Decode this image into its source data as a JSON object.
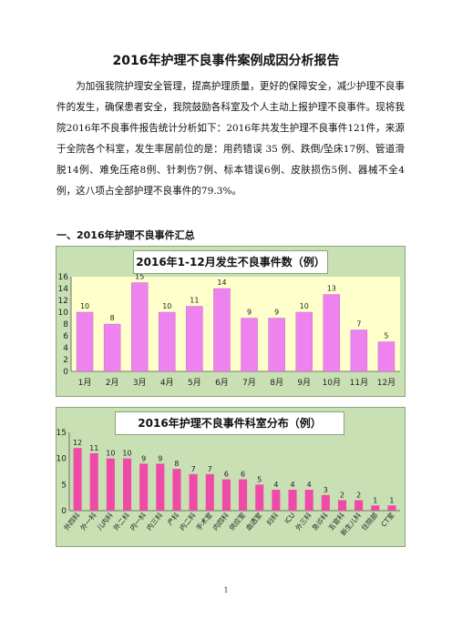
{
  "document": {
    "title": "2016年护理不良事件案例成因分析报告",
    "paragraph": "为加强我院护理安全管理，提高护理质量，更好的保障安全，减少护理不良事件的发生，确保患者安全，我院鼓励各科室及个人主动上报护理不良事件。现将我院2016年不良事件报告统计分析如下：2016年共发生护理不良事件121件，来源于全院各个科室，发生率居前位的是：用药错误 35 例、跌倒/坠床17例、管道滑脱14例、难免压疮8例、针刺伤7例、标本错误6例、皮肤损伤5例、器械不全4例，这八项占全部护理不良事件的79.3%。",
    "section_heading": "一、2016年护理不良事件汇总",
    "page_number": "1"
  },
  "colors": {
    "bar": "#ee82ee",
    "bar_stroke": "#c060c0",
    "plot_bg": "#ffffcc",
    "frame_bg": "#c8e0b4",
    "pink_bar": "#f04aa8"
  },
  "chart_data": [
    {
      "type": "bar",
      "title": "2016年1-12月发生不良事件数（例）",
      "categories": [
        "1月",
        "2月",
        "3月",
        "4月",
        "5月",
        "6月",
        "7月",
        "8月",
        "9月",
        "10月",
        "11月",
        "12月"
      ],
      "values": [
        10,
        8,
        15,
        10,
        11,
        14,
        9,
        9,
        10,
        13,
        7,
        5
      ],
      "yticks": [
        "0",
        "2",
        "4",
        "6",
        "8",
        "10",
        "12",
        "14",
        "16"
      ],
      "ylim": [
        0,
        16
      ],
      "grid": false,
      "legend": "none"
    },
    {
      "type": "bar",
      "title": "2016年护理不良事件科室分布（例）",
      "categories": [
        "外四科",
        "外一科",
        "儿内科",
        "外二科",
        "内一科",
        "内三科",
        "产科",
        "内二科",
        "手术室",
        "内四科",
        "供应室",
        "血透室",
        "妇科",
        "ICU",
        "外三科",
        "急诊科",
        "五官科",
        "新生儿科",
        "住院部",
        "CT室"
      ],
      "values": [
        12,
        11,
        10,
        10,
        9,
        9,
        8,
        7,
        7,
        6,
        6,
        5,
        4,
        4,
        4,
        3,
        2,
        2,
        1,
        1
      ],
      "yticks": [
        "0",
        "5",
        "10",
        "15"
      ],
      "ylim": [
        0,
        15
      ],
      "grid": false,
      "legend": "none"
    }
  ]
}
